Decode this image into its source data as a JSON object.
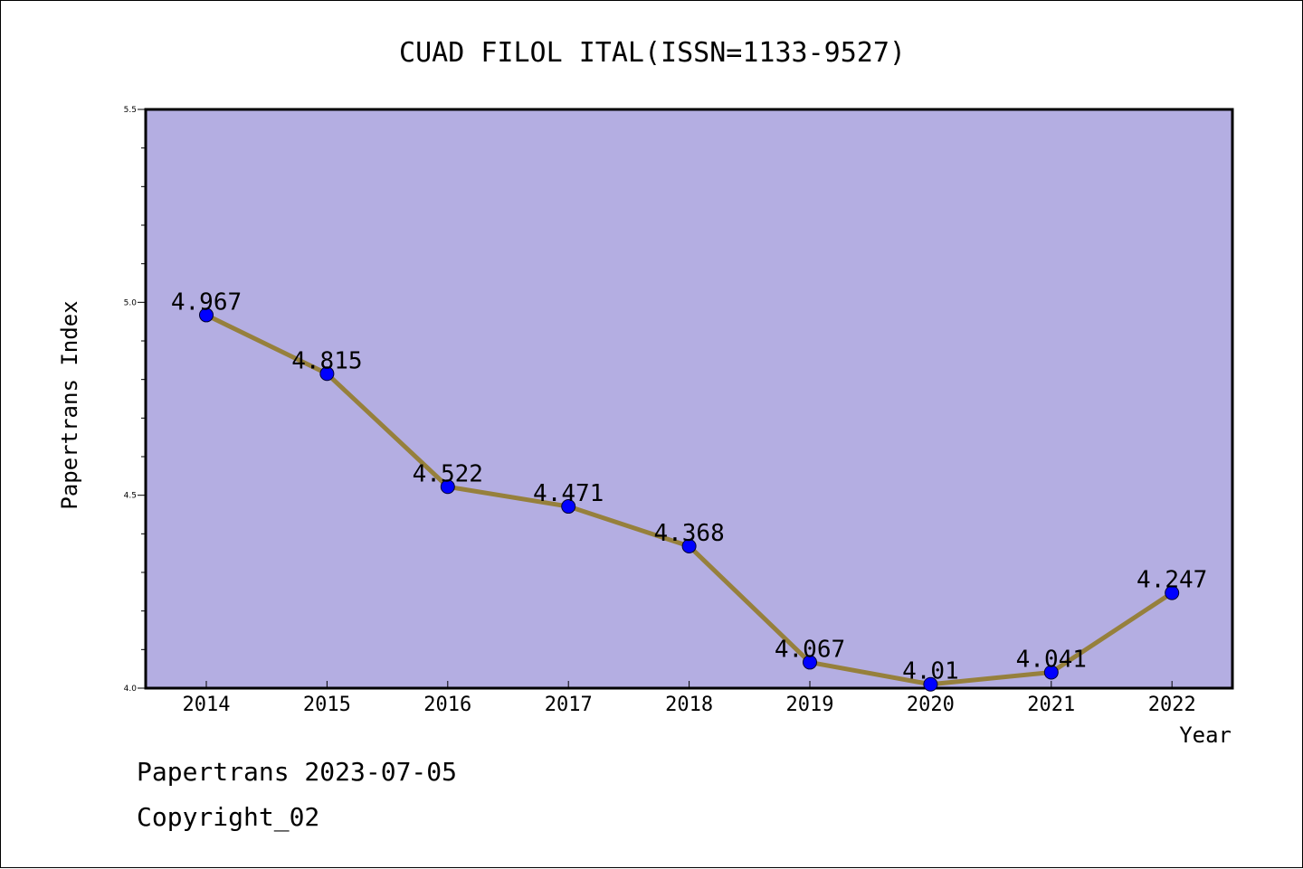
{
  "chart_data": {
    "type": "line",
    "title": "CUAD FILOL ITAL(ISSN=1133-9527)",
    "xlabel": "Year",
    "ylabel": "Papertrans Index",
    "categories": [
      "2014",
      "2015",
      "2016",
      "2017",
      "2018",
      "2019",
      "2020",
      "2021",
      "2022"
    ],
    "series": [
      {
        "values": [
          4.967,
          4.815,
          4.522,
          4.471,
          4.368,
          4.067,
          4.01,
          4.041,
          4.247
        ],
        "labels": [
          "4.967",
          "4.815",
          "4.522",
          "4.471",
          "4.368",
          "4.067",
          "4.01",
          "4.041",
          "4.247"
        ]
      }
    ],
    "ylim": [
      4.0,
      5.5
    ],
    "yticks": [
      "4.0",
      "4.5",
      "5.0",
      "5.5"
    ],
    "grid": false,
    "colors": {
      "plot_background": "#b4aee2",
      "line": "#96803c",
      "marker": "#0000ff",
      "axis": "#000000"
    }
  },
  "footer": {
    "line1": "Papertrans 2023-07-05",
    "line2": "Copyright_02"
  }
}
